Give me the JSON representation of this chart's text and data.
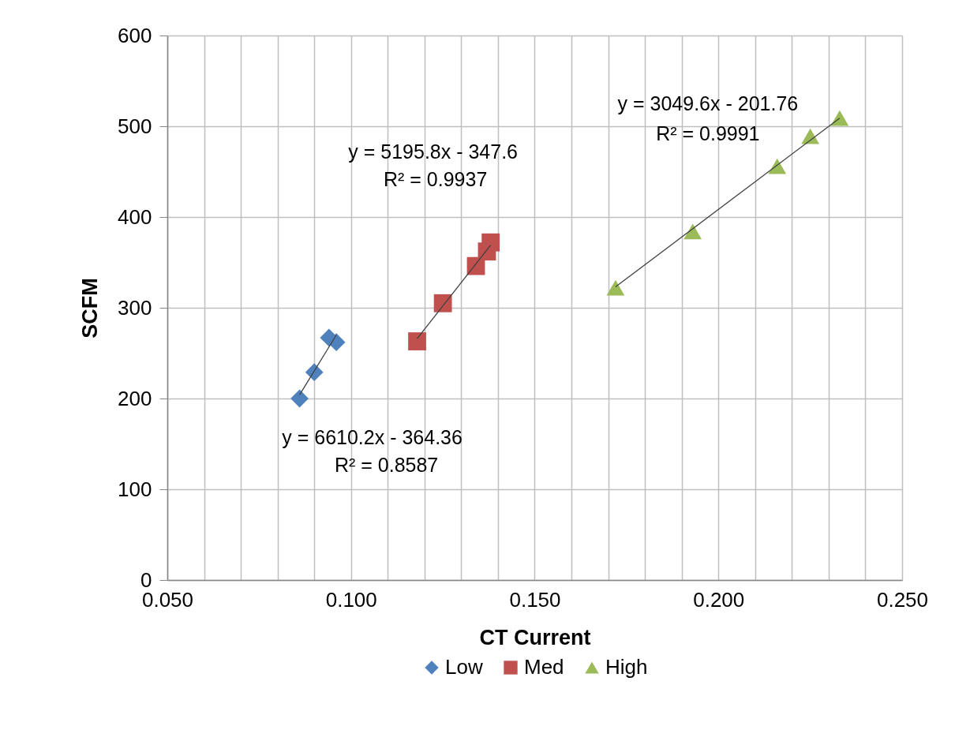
{
  "chart_data": {
    "type": "scatter",
    "xlabel": "CT Current",
    "ylabel": "SCFM",
    "xlim": [
      0.05,
      0.25
    ],
    "ylim": [
      0,
      600
    ],
    "xticks": [
      {
        "value": 0.05,
        "label": "0.050"
      },
      {
        "value": 0.06,
        "label": null
      },
      {
        "value": 0.07,
        "label": null
      },
      {
        "value": 0.08,
        "label": null
      },
      {
        "value": 0.09,
        "label": null
      },
      {
        "value": 0.1,
        "label": "0.100"
      },
      {
        "value": 0.11,
        "label": null
      },
      {
        "value": 0.12,
        "label": null
      },
      {
        "value": 0.13,
        "label": null
      },
      {
        "value": 0.14,
        "label": null
      },
      {
        "value": 0.15,
        "label": "0.150"
      },
      {
        "value": 0.16,
        "label": null
      },
      {
        "value": 0.17,
        "label": null
      },
      {
        "value": 0.18,
        "label": null
      },
      {
        "value": 0.19,
        "label": null
      },
      {
        "value": 0.2,
        "label": "0.200"
      },
      {
        "value": 0.21,
        "label": null
      },
      {
        "value": 0.22,
        "label": null
      },
      {
        "value": 0.23,
        "label": null
      },
      {
        "value": 0.24,
        "label": null
      },
      {
        "value": 0.25,
        "label": "0.250"
      }
    ],
    "yticks": [
      0,
      100,
      200,
      300,
      400,
      500,
      600
    ],
    "grid": true,
    "legend": "bottom",
    "series": [
      {
        "name": "Low",
        "color": "#4f81bd",
        "marker": "diamond",
        "x": [
          0.086,
          0.09,
          0.094,
          0.096
        ],
        "values": [
          200,
          229,
          267,
          262
        ]
      },
      {
        "name": "Med",
        "color": "#c0504d",
        "marker": "square",
        "x": [
          0.118,
          0.125,
          0.134,
          0.137,
          0.138
        ],
        "values": [
          263,
          305,
          346,
          362,
          372
        ]
      },
      {
        "name": "High",
        "color": "#9bbb59",
        "marker": "triangle",
        "x": [
          0.172,
          0.193,
          0.216,
          0.225,
          0.233
        ],
        "values": [
          322,
          384,
          456,
          489,
          509
        ]
      },
      {
        "type": "line",
        "color": "#404040",
        "x": [
          0.086,
          0.096
        ],
        "values": [
          204,
          270
        ]
      },
      {
        "type": "line",
        "color": "#404040",
        "x": [
          0.118,
          0.138
        ],
        "values": [
          266,
          369
        ]
      },
      {
        "type": "line",
        "color": "#404040",
        "x": [
          0.172,
          0.233
        ],
        "values": [
          323,
          509
        ]
      }
    ],
    "annotations": [
      "y = 6610.2x - 364.36",
      "R² = 0.8587",
      "y = 5195.8x - 347.6",
      "R² = 0.9937",
      "y = 3049.6x - 201.76",
      "R² = 0.9991"
    ]
  }
}
